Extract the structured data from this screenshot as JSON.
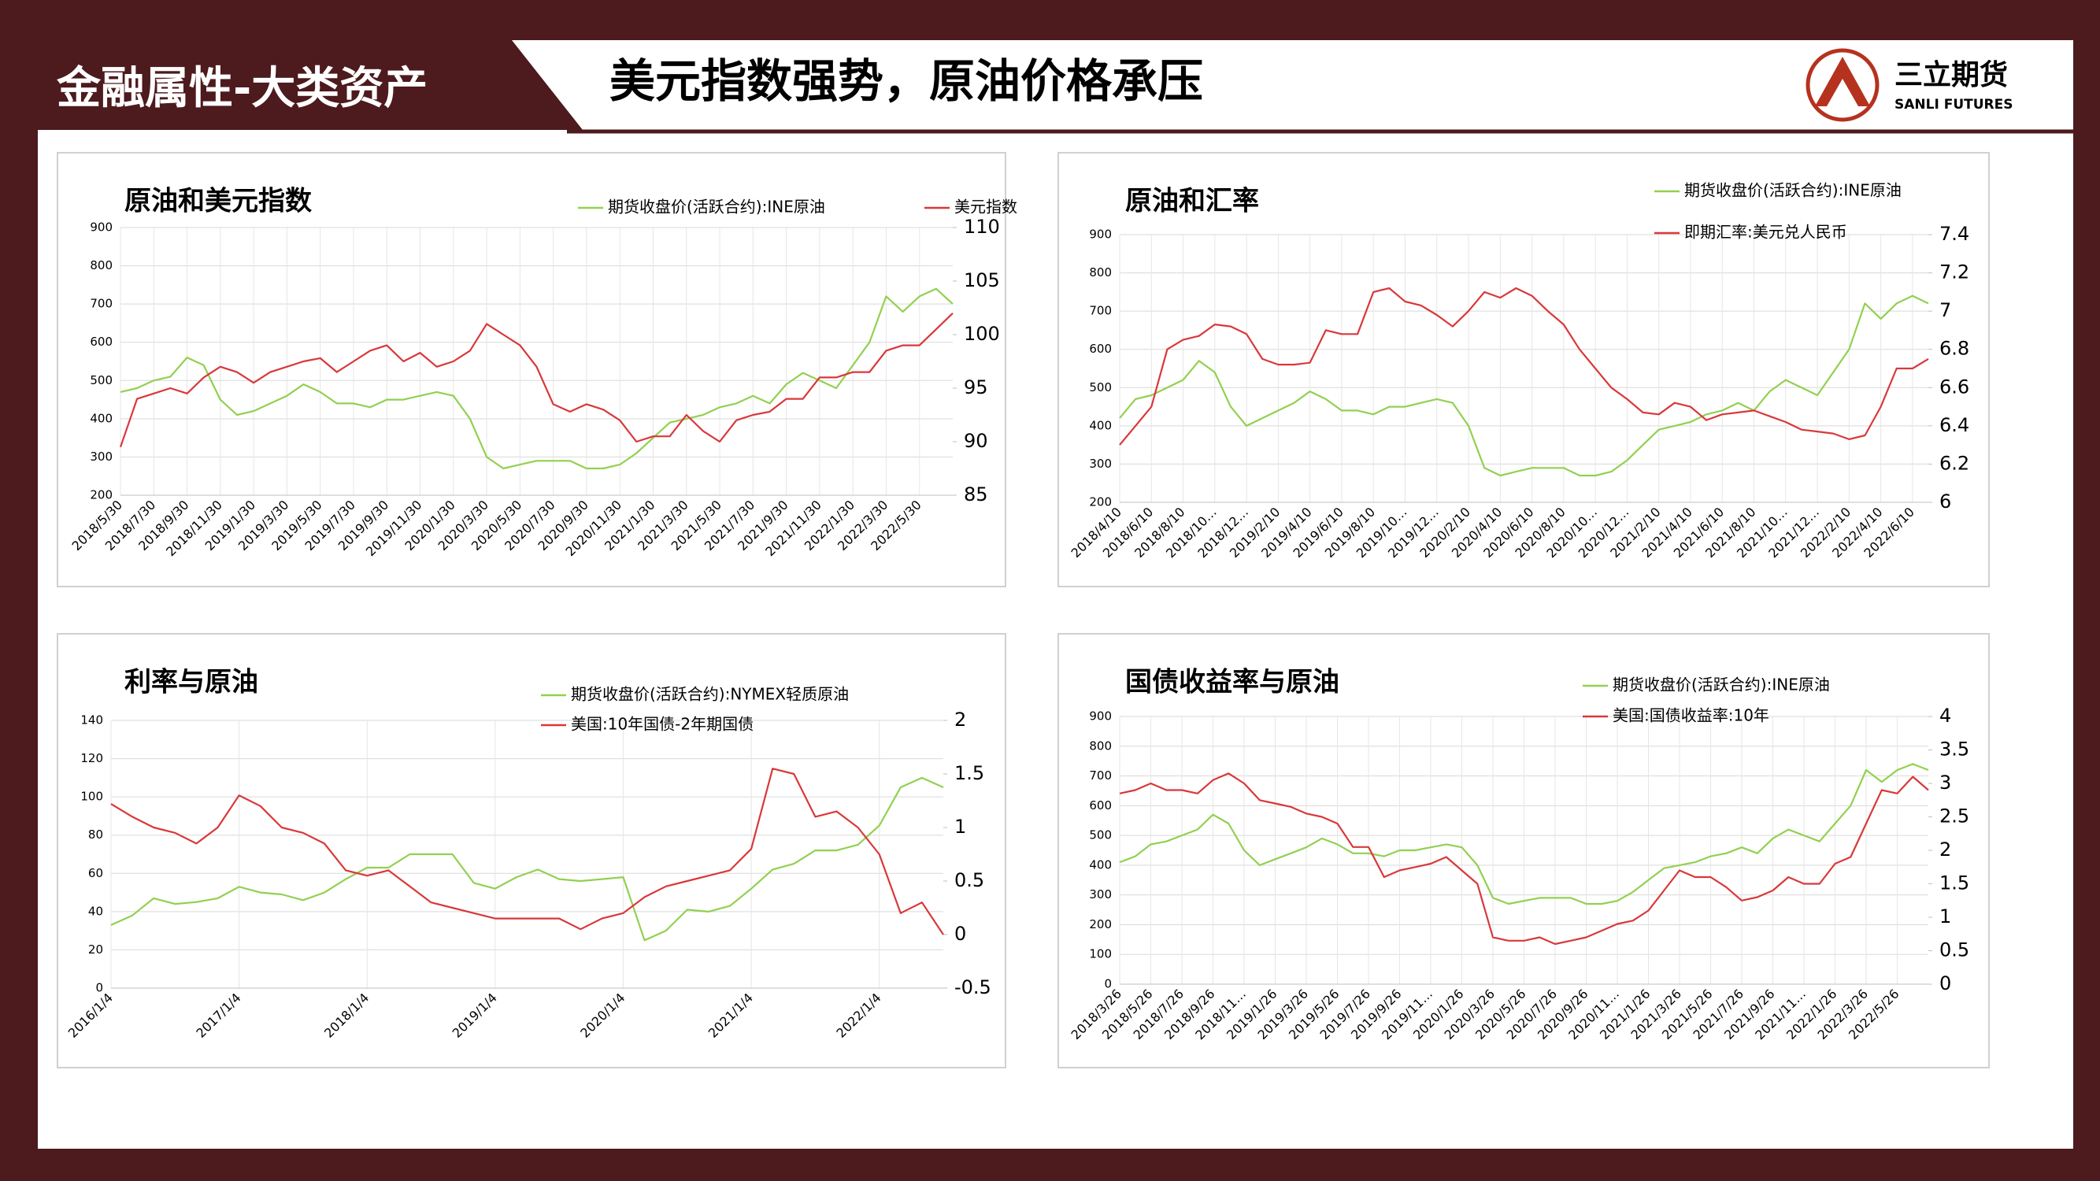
{
  "header": {
    "section": "金融属性-大类资产",
    "title": "美元指数强势，原油价格承压",
    "logo_cn": "三立期货",
    "logo_en": "SANLI FUTURES"
  },
  "chart_data": [
    {
      "type": "line",
      "title": "原油和美元指数",
      "grid": true,
      "categories": [
        "2018/5/30",
        null,
        "2018/7/30",
        null,
        "2018/9/30",
        null,
        "2018/11/30",
        null,
        "2019/1/30",
        null,
        "2019/3/30",
        null,
        "2019/5/30",
        null,
        "2019/7/30",
        null,
        "2019/9/30",
        null,
        "2019/11/30",
        null,
        "2020/1/30",
        null,
        "2020/3/30",
        null,
        "2020/5/30",
        null,
        "2020/7/30",
        null,
        "2020/9/30",
        null,
        "2020/11/30",
        null,
        "2021/1/30",
        null,
        "2021/3/30",
        null,
        "2021/5/30",
        null,
        "2021/7/30",
        null,
        "2021/9/30",
        null,
        "2021/11/30",
        null,
        "2022/1/30",
        null,
        "2022/3/30",
        null,
        "2022/5/30",
        null,
        null
      ],
      "series": [
        {
          "name": "期货收盘价(活跃合约):INE原油",
          "color": "#92d050",
          "values": [
            470,
            480,
            500,
            510,
            560,
            540,
            450,
            410,
            420,
            440,
            460,
            490,
            470,
            440,
            440,
            430,
            450,
            450,
            460,
            470,
            460,
            400,
            300,
            270,
            280,
            290,
            290,
            290,
            270,
            270,
            280,
            310,
            350,
            390,
            400,
            410,
            430,
            440,
            460,
            440,
            490,
            520,
            500,
            480,
            540,
            600,
            720,
            680,
            720,
            740,
            700
          ]
        },
        {
          "name": "美元指数",
          "color": "#d9383a",
          "axis": "y2",
          "values": [
            89.5,
            94,
            94.5,
            95,
            94.5,
            96,
            97,
            96.5,
            95.5,
            96.5,
            97,
            97.5,
            97.8,
            96.5,
            97.5,
            98.5,
            99,
            97.5,
            98.3,
            97,
            97.5,
            98.5,
            101,
            100,
            99,
            97,
            93.5,
            92.8,
            93.5,
            93,
            92,
            90,
            90.5,
            90.5,
            92.5,
            91,
            90,
            92,
            92.5,
            92.8,
            94,
            94,
            96,
            96,
            96.5,
            96.5,
            98.5,
            99,
            99,
            100.5,
            102
          ]
        }
      ],
      "ylim": [
        200,
        900
      ],
      "yticks": [
        200,
        300,
        400,
        500,
        600,
        700,
        800,
        900
      ],
      "y2lim": [
        85,
        110
      ],
      "y2ticks": [
        85,
        90,
        95,
        100,
        105,
        110
      ]
    },
    {
      "type": "line",
      "title": "原油和汇率",
      "grid": true,
      "categories": [
        "2018/4/10",
        null,
        "2018/6/10",
        null,
        "2018/8/10",
        null,
        "2018/10…",
        null,
        "2018/12…",
        null,
        "2019/2/10",
        null,
        "2019/4/10",
        null,
        "2019/6/10",
        null,
        "2019/8/10",
        null,
        "2019/10…",
        null,
        "2019/12…",
        null,
        "2020/2/10",
        null,
        "2020/4/10",
        null,
        "2020/6/10",
        null,
        "2020/8/10",
        null,
        "2020/10…",
        null,
        "2020/12…",
        null,
        "2021/2/10",
        null,
        "2021/4/10",
        null,
        "2021/6/10",
        null,
        "2021/8/10",
        null,
        "2021/10…",
        null,
        "2021/12…",
        null,
        "2022/2/10",
        null,
        "2022/4/10",
        null,
        "2022/6/10",
        null
      ],
      "series": [
        {
          "name": "期货收盘价(活跃合约):INE原油",
          "color": "#92d050",
          "values": [
            420,
            470,
            480,
            500,
            520,
            570,
            540,
            450,
            400,
            420,
            440,
            460,
            490,
            470,
            440,
            440,
            430,
            450,
            450,
            460,
            470,
            460,
            400,
            290,
            270,
            280,
            290,
            290,
            290,
            270,
            270,
            280,
            310,
            350,
            390,
            400,
            410,
            430,
            440,
            460,
            440,
            490,
            520,
            500,
            480,
            540,
            600,
            720,
            680,
            720,
            740,
            720
          ]
        },
        {
          "name": "即期汇率:美元兑人民币",
          "color": "#d9383a",
          "axis": "y2",
          "values": [
            6.3,
            6.4,
            6.5,
            6.8,
            6.85,
            6.87,
            6.93,
            6.92,
            6.88,
            6.75,
            6.72,
            6.72,
            6.73,
            6.9,
            6.88,
            6.88,
            7.1,
            7.12,
            7.05,
            7.03,
            6.98,
            6.92,
            7.0,
            7.1,
            7.07,
            7.12,
            7.08,
            7.0,
            6.93,
            6.8,
            6.7,
            6.6,
            6.54,
            6.47,
            6.46,
            6.52,
            6.5,
            6.43,
            6.46,
            6.47,
            6.48,
            6.45,
            6.42,
            6.38,
            6.37,
            6.36,
            6.33,
            6.35,
            6.5,
            6.7,
            6.7,
            6.75
          ]
        }
      ],
      "ylim": [
        200,
        900
      ],
      "yticks": [
        200,
        300,
        400,
        500,
        600,
        700,
        800,
        900
      ],
      "y2lim": [
        6,
        7.4
      ],
      "y2ticks": [
        6,
        6.2,
        6.4,
        6.6,
        6.8,
        7,
        7.2,
        7.4
      ]
    },
    {
      "type": "line",
      "title": "利率与原油",
      "grid": true,
      "categories": [
        "2016/1/4",
        null,
        null,
        null,
        null,
        null,
        "2017/1/4",
        null,
        null,
        null,
        null,
        null,
        "2018/1/4",
        null,
        null,
        null,
        null,
        null,
        "2019/1/4",
        null,
        null,
        null,
        null,
        null,
        "2020/1/4",
        null,
        null,
        null,
        null,
        null,
        "2021/1/4",
        null,
        null,
        null,
        null,
        null,
        "2022/1/4",
        null,
        null,
        null
      ],
      "series": [
        {
          "name": "期货收盘价(活跃合约):NYMEX轻质原油",
          "color": "#92d050",
          "values": [
            33,
            38,
            47,
            44,
            45,
            47,
            53,
            50,
            49,
            46,
            50,
            57,
            63,
            63,
            70,
            70,
            70,
            55,
            52,
            58,
            62,
            57,
            56,
            57,
            58,
            25,
            30,
            41,
            40,
            43,
            52,
            62,
            65,
            72,
            72,
            75,
            85,
            105,
            110,
            105
          ]
        },
        {
          "name": "美国:10年国债-2年期国债",
          "color": "#d9383a",
          "axis": "y2",
          "values": [
            1.22,
            1.1,
            1.0,
            0.95,
            0.85,
            1.0,
            1.3,
            1.2,
            1.0,
            0.95,
            0.85,
            0.6,
            0.55,
            0.6,
            0.45,
            0.3,
            0.25,
            0.2,
            0.15,
            0.15,
            0.15,
            0.15,
            0.05,
            0.15,
            0.2,
            0.35,
            0.45,
            0.5,
            0.55,
            0.6,
            0.8,
            1.55,
            1.5,
            1.1,
            1.15,
            1.0,
            0.75,
            0.2,
            0.3,
            0.0
          ]
        }
      ],
      "ylim": [
        0,
        140
      ],
      "yticks": [
        0,
        20,
        40,
        60,
        80,
        100,
        120,
        140
      ],
      "y2lim": [
        -0.5,
        2
      ],
      "y2ticks": [
        -0.5,
        0,
        0.5,
        1,
        1.5,
        2
      ]
    },
    {
      "type": "line",
      "title": "国债收益率与原油",
      "grid": true,
      "categories": [
        "2018/3/26",
        null,
        "2018/5/26",
        null,
        "2018/7/26",
        null,
        "2018/9/26",
        null,
        "2018/11…",
        null,
        "2019/1/26",
        null,
        "2019/3/26",
        null,
        "2019/5/26",
        null,
        "2019/7/26",
        null,
        "2019/9/26",
        null,
        "2019/11…",
        null,
        "2020/1/26",
        null,
        "2020/3/26",
        null,
        "2020/5/26",
        null,
        "2020/7/26",
        null,
        "2020/9/26",
        null,
        "2020/11…",
        null,
        "2021/1/26",
        null,
        "2021/3/26",
        null,
        "2021/5/26",
        null,
        "2021/7/26",
        null,
        "2021/9/26",
        null,
        "2021/11…",
        null,
        "2022/1/26",
        null,
        "2022/3/26",
        null,
        "2022/5/26",
        null,
        null
      ],
      "series": [
        {
          "name": "期货收盘价(活跃合约):INE原油",
          "color": "#92d050",
          "values": [
            410,
            430,
            470,
            480,
            500,
            520,
            570,
            540,
            450,
            400,
            420,
            440,
            460,
            490,
            470,
            440,
            440,
            430,
            450,
            450,
            460,
            470,
            460,
            400,
            290,
            270,
            280,
            290,
            290,
            290,
            270,
            270,
            280,
            310,
            350,
            390,
            400,
            410,
            430,
            440,
            460,
            440,
            490,
            520,
            500,
            480,
            540,
            600,
            720,
            680,
            720,
            740,
            720
          ]
        },
        {
          "name": "美国:国债收益率:10年",
          "color": "#d9383a",
          "axis": "y2",
          "values": [
            2.85,
            2.9,
            3.0,
            2.9,
            2.9,
            2.85,
            3.05,
            3.15,
            3.0,
            2.75,
            2.7,
            2.65,
            2.55,
            2.5,
            2.4,
            2.05,
            2.05,
            1.6,
            1.7,
            1.75,
            1.8,
            1.9,
            1.7,
            1.5,
            0.7,
            0.65,
            0.65,
            0.7,
            0.6,
            0.65,
            0.7,
            0.8,
            0.9,
            0.95,
            1.1,
            1.4,
            1.7,
            1.6,
            1.6,
            1.45,
            1.25,
            1.3,
            1.4,
            1.6,
            1.5,
            1.5,
            1.8,
            1.9,
            2.4,
            2.9,
            2.85,
            3.1,
            2.9
          ]
        }
      ],
      "ylim": [
        0,
        900
      ],
      "yticks": [
        0,
        100,
        200,
        300,
        400,
        500,
        600,
        700,
        800,
        900
      ],
      "y2lim": [
        0,
        4
      ],
      "y2ticks": [
        0,
        0.5,
        1,
        1.5,
        2,
        2.5,
        3,
        3.5,
        4
      ]
    }
  ]
}
